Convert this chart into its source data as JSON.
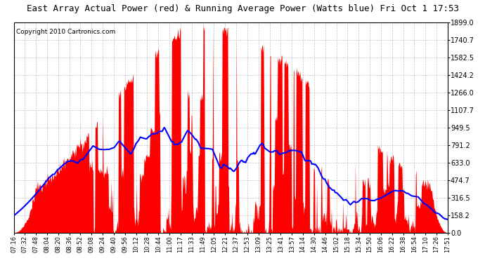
{
  "title": "East Array Actual Power (red) & Running Average Power (Watts blue) Fri Oct 1 17:53",
  "copyright": "Copyright 2010 Cartronics.com",
  "ymax": 1899.0,
  "yticks": [
    0.0,
    158.2,
    316.5,
    474.7,
    633.0,
    791.2,
    949.5,
    1107.7,
    1266.0,
    1424.2,
    1582.5,
    1740.7,
    1899.0
  ],
  "ytick_labels": [
    "0.0",
    "158.2",
    "316.5",
    "474.7",
    "633.0",
    "791.2",
    "949.5",
    "1107.7",
    "1266.0",
    "1424.2",
    "1582.5",
    "1740.7",
    "1899.0"
  ],
  "x_labels": [
    "07:16",
    "07:32",
    "07:48",
    "08:04",
    "08:20",
    "08:36",
    "08:52",
    "09:08",
    "09:24",
    "09:40",
    "09:56",
    "10:12",
    "10:28",
    "10:44",
    "11:00",
    "11:17",
    "11:33",
    "11:49",
    "12:05",
    "12:21",
    "12:37",
    "12:53",
    "13:09",
    "13:25",
    "13:41",
    "13:57",
    "14:14",
    "14:30",
    "14:46",
    "15:02",
    "15:18",
    "15:34",
    "15:50",
    "16:06",
    "16:22",
    "16:38",
    "16:54",
    "17:10",
    "17:26",
    "17:51"
  ],
  "actual_color": "#FF0000",
  "avg_color": "#0000FF",
  "bg_color": "#FFFFFF",
  "grid_color": "#BBBBBB",
  "title_fontsize": 9,
  "copyright_fontsize": 6.5
}
